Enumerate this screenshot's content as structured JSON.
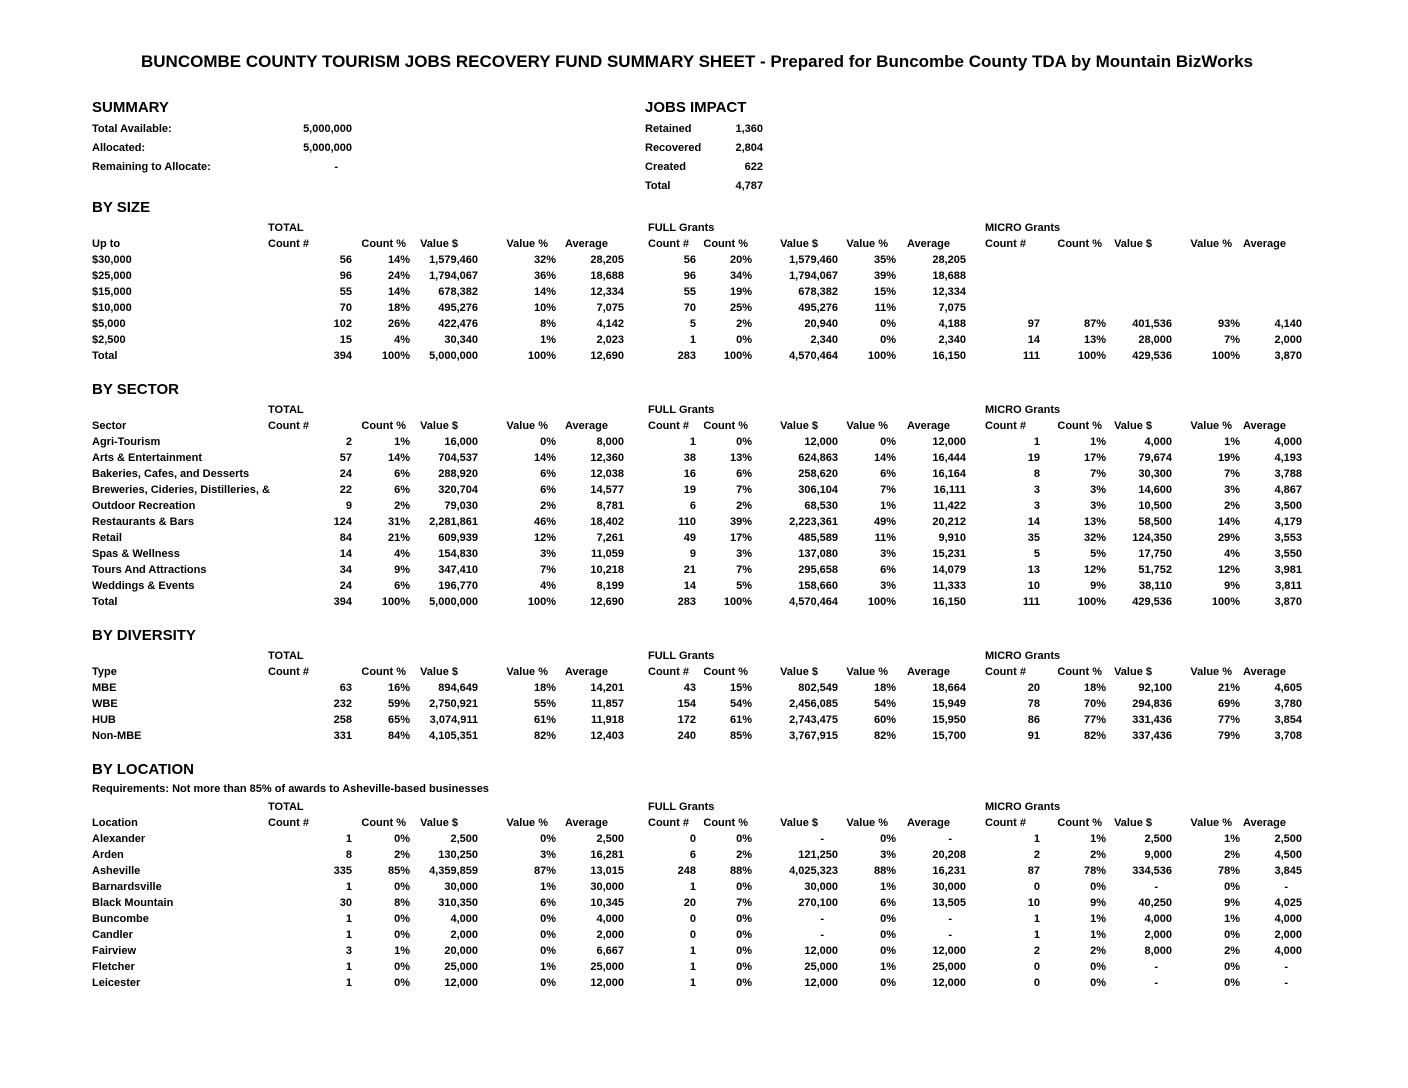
{
  "title": "BUNCOMBE COUNTY TOURISM JOBS RECOVERY FUND SUMMARY SHEET - Prepared for Buncombe County TDA by Mountain BizWorks",
  "summary": {
    "heading": "SUMMARY",
    "rows": [
      {
        "label": "Total Available:",
        "value": "5,000,000"
      },
      {
        "label": "Allocated:",
        "value": "5,000,000"
      },
      {
        "label": "Remaining to Allocate:",
        "value": "-"
      }
    ]
  },
  "jobs_impact": {
    "heading": "JOBS IMPACT",
    "rows": [
      {
        "label": "Retained",
        "value": "1,360"
      },
      {
        "label": "Recovered",
        "value": "2,804"
      },
      {
        "label": "Created",
        "value": "622"
      },
      {
        "label": "Total",
        "value": "4,787"
      }
    ]
  },
  "column_groups": [
    "TOTAL",
    "FULL Grants",
    "MICRO Grants"
  ],
  "column_headers": [
    "Count #",
    "Count %",
    "Value $",
    "Value %",
    "Average"
  ],
  "sections": [
    {
      "heading": "BY SIZE",
      "label_header": "Up to",
      "note": "",
      "rows": [
        {
          "label": "$30,000",
          "total": [
            "56",
            "14%",
            "1,579,460",
            "32%",
            "28,205"
          ],
          "full": [
            "56",
            "20%",
            "1,579,460",
            "35%",
            "28,205"
          ],
          "micro": [
            "",
            "",
            "",
            "",
            ""
          ]
        },
        {
          "label": "$25,000",
          "total": [
            "96",
            "24%",
            "1,794,067",
            "36%",
            "18,688"
          ],
          "full": [
            "96",
            "34%",
            "1,794,067",
            "39%",
            "18,688"
          ],
          "micro": [
            "",
            "",
            "",
            "",
            ""
          ]
        },
        {
          "label": "$15,000",
          "total": [
            "55",
            "14%",
            "678,382",
            "14%",
            "12,334"
          ],
          "full": [
            "55",
            "19%",
            "678,382",
            "15%",
            "12,334"
          ],
          "micro": [
            "",
            "",
            "",
            "",
            ""
          ]
        },
        {
          "label": "$10,000",
          "total": [
            "70",
            "18%",
            "495,276",
            "10%",
            "7,075"
          ],
          "full": [
            "70",
            "25%",
            "495,276",
            "11%",
            "7,075"
          ],
          "micro": [
            "",
            "",
            "",
            "",
            ""
          ]
        },
        {
          "label": "$5,000",
          "total": [
            "102",
            "26%",
            "422,476",
            "8%",
            "4,142"
          ],
          "full": [
            "5",
            "2%",
            "20,940",
            "0%",
            "4,188"
          ],
          "micro": [
            "97",
            "87%",
            "401,536",
            "93%",
            "4,140"
          ]
        },
        {
          "label": "$2,500",
          "total": [
            "15",
            "4%",
            "30,340",
            "1%",
            "2,023"
          ],
          "full": [
            "1",
            "0%",
            "2,340",
            "0%",
            "2,340"
          ],
          "micro": [
            "14",
            "13%",
            "28,000",
            "7%",
            "2,000"
          ]
        },
        {
          "label": "Total",
          "total": [
            "394",
            "100%",
            "5,000,000",
            "100%",
            "12,690"
          ],
          "full": [
            "283",
            "100%",
            "4,570,464",
            "100%",
            "16,150"
          ],
          "micro": [
            "111",
            "100%",
            "429,536",
            "100%",
            "3,870"
          ]
        }
      ]
    },
    {
      "heading": "BY SECTOR",
      "label_header": "Sector",
      "note": "",
      "rows": [
        {
          "label": "Agri-Tourism",
          "total": [
            "2",
            "1%",
            "16,000",
            "0%",
            "8,000"
          ],
          "full": [
            "1",
            "0%",
            "12,000",
            "0%",
            "12,000"
          ],
          "micro": [
            "1",
            "1%",
            "4,000",
            "1%",
            "4,000"
          ]
        },
        {
          "label": "Arts & Entertainment",
          "total": [
            "57",
            "14%",
            "704,537",
            "14%",
            "12,360"
          ],
          "full": [
            "38",
            "13%",
            "624,863",
            "14%",
            "16,444"
          ],
          "micro": [
            "19",
            "17%",
            "79,674",
            "19%",
            "4,193"
          ]
        },
        {
          "label": "Bakeries, Cafes, and Desserts",
          "total": [
            "24",
            "6%",
            "288,920",
            "6%",
            "12,038"
          ],
          "full": [
            "16",
            "6%",
            "258,620",
            "6%",
            "16,164"
          ],
          "micro": [
            "8",
            "7%",
            "30,300",
            "7%",
            "3,788"
          ]
        },
        {
          "label": "Breweries, Cideries, Distilleries, &",
          "total": [
            "22",
            "6%",
            "320,704",
            "6%",
            "14,577"
          ],
          "full": [
            "19",
            "7%",
            "306,104",
            "7%",
            "16,111"
          ],
          "micro": [
            "3",
            "3%",
            "14,600",
            "3%",
            "4,867"
          ]
        },
        {
          "label": "Outdoor Recreation",
          "total": [
            "9",
            "2%",
            "79,030",
            "2%",
            "8,781"
          ],
          "full": [
            "6",
            "2%",
            "68,530",
            "1%",
            "11,422"
          ],
          "micro": [
            "3",
            "3%",
            "10,500",
            "2%",
            "3,500"
          ]
        },
        {
          "label": "Restaurants & Bars",
          "total": [
            "124",
            "31%",
            "2,281,861",
            "46%",
            "18,402"
          ],
          "full": [
            "110",
            "39%",
            "2,223,361",
            "49%",
            "20,212"
          ],
          "micro": [
            "14",
            "13%",
            "58,500",
            "14%",
            "4,179"
          ]
        },
        {
          "label": "Retail",
          "total": [
            "84",
            "21%",
            "609,939",
            "12%",
            "7,261"
          ],
          "full": [
            "49",
            "17%",
            "485,589",
            "11%",
            "9,910"
          ],
          "micro": [
            "35",
            "32%",
            "124,350",
            "29%",
            "3,553"
          ]
        },
        {
          "label": "Spas & Wellness",
          "total": [
            "14",
            "4%",
            "154,830",
            "3%",
            "11,059"
          ],
          "full": [
            "9",
            "3%",
            "137,080",
            "3%",
            "15,231"
          ],
          "micro": [
            "5",
            "5%",
            "17,750",
            "4%",
            "3,550"
          ]
        },
        {
          "label": "Tours And Attractions",
          "total": [
            "34",
            "9%",
            "347,410",
            "7%",
            "10,218"
          ],
          "full": [
            "21",
            "7%",
            "295,658",
            "6%",
            "14,079"
          ],
          "micro": [
            "13",
            "12%",
            "51,752",
            "12%",
            "3,981"
          ]
        },
        {
          "label": "Weddings & Events",
          "total": [
            "24",
            "6%",
            "196,770",
            "4%",
            "8,199"
          ],
          "full": [
            "14",
            "5%",
            "158,660",
            "3%",
            "11,333"
          ],
          "micro": [
            "10",
            "9%",
            "38,110",
            "9%",
            "3,811"
          ]
        },
        {
          "label": "Total",
          "total": [
            "394",
            "100%",
            "5,000,000",
            "100%",
            "12,690"
          ],
          "full": [
            "283",
            "100%",
            "4,570,464",
            "100%",
            "16,150"
          ],
          "micro": [
            "111",
            "100%",
            "429,536",
            "100%",
            "3,870"
          ]
        }
      ]
    },
    {
      "heading": "BY DIVERSITY",
      "label_header": "Type",
      "note": "",
      "rows": [
        {
          "label": "MBE",
          "total": [
            "63",
            "16%",
            "894,649",
            "18%",
            "14,201"
          ],
          "full": [
            "43",
            "15%",
            "802,549",
            "18%",
            "18,664"
          ],
          "micro": [
            "20",
            "18%",
            "92,100",
            "21%",
            "4,605"
          ]
        },
        {
          "label": "WBE",
          "total": [
            "232",
            "59%",
            "2,750,921",
            "55%",
            "11,857"
          ],
          "full": [
            "154",
            "54%",
            "2,456,085",
            "54%",
            "15,949"
          ],
          "micro": [
            "78",
            "70%",
            "294,836",
            "69%",
            "3,780"
          ]
        },
        {
          "label": "HUB",
          "total": [
            "258",
            "65%",
            "3,074,911",
            "61%",
            "11,918"
          ],
          "full": [
            "172",
            "61%",
            "2,743,475",
            "60%",
            "15,950"
          ],
          "micro": [
            "86",
            "77%",
            "331,436",
            "77%",
            "3,854"
          ]
        },
        {
          "label": "Non-MBE",
          "total": [
            "331",
            "84%",
            "4,105,351",
            "82%",
            "12,403"
          ],
          "full": [
            "240",
            "85%",
            "3,767,915",
            "82%",
            "15,700"
          ],
          "micro": [
            "91",
            "82%",
            "337,436",
            "79%",
            "3,708"
          ]
        }
      ]
    },
    {
      "heading": "BY LOCATION",
      "label_header": "Location",
      "note": "Requirements: Not more than 85% of awards to Asheville-based businesses",
      "rows": [
        {
          "label": "Alexander",
          "total": [
            "1",
            "0%",
            "2,500",
            "0%",
            "2,500"
          ],
          "full": [
            "0",
            "0%",
            "-",
            "0%",
            "-"
          ],
          "micro": [
            "1",
            "1%",
            "2,500",
            "1%",
            "2,500"
          ]
        },
        {
          "label": "Arden",
          "total": [
            "8",
            "2%",
            "130,250",
            "3%",
            "16,281"
          ],
          "full": [
            "6",
            "2%",
            "121,250",
            "3%",
            "20,208"
          ],
          "micro": [
            "2",
            "2%",
            "9,000",
            "2%",
            "4,500"
          ]
        },
        {
          "label": "Asheville",
          "total": [
            "335",
            "85%",
            "4,359,859",
            "87%",
            "13,015"
          ],
          "full": [
            "248",
            "88%",
            "4,025,323",
            "88%",
            "16,231"
          ],
          "micro": [
            "87",
            "78%",
            "334,536",
            "78%",
            "3,845"
          ]
        },
        {
          "label": "Barnardsville",
          "total": [
            "1",
            "0%",
            "30,000",
            "1%",
            "30,000"
          ],
          "full": [
            "1",
            "0%",
            "30,000",
            "1%",
            "30,000"
          ],
          "micro": [
            "0",
            "0%",
            "-",
            "0%",
            "-"
          ]
        },
        {
          "label": "Black Mountain",
          "total": [
            "30",
            "8%",
            "310,350",
            "6%",
            "10,345"
          ],
          "full": [
            "20",
            "7%",
            "270,100",
            "6%",
            "13,505"
          ],
          "micro": [
            "10",
            "9%",
            "40,250",
            "9%",
            "4,025"
          ]
        },
        {
          "label": "Buncombe",
          "total": [
            "1",
            "0%",
            "4,000",
            "0%",
            "4,000"
          ],
          "full": [
            "0",
            "0%",
            "-",
            "0%",
            "-"
          ],
          "micro": [
            "1",
            "1%",
            "4,000",
            "1%",
            "4,000"
          ]
        },
        {
          "label": "Candler",
          "total": [
            "1",
            "0%",
            "2,000",
            "0%",
            "2,000"
          ],
          "full": [
            "0",
            "0%",
            "-",
            "0%",
            "-"
          ],
          "micro": [
            "1",
            "1%",
            "2,000",
            "0%",
            "2,000"
          ]
        },
        {
          "label": "Fairview",
          "total": [
            "3",
            "1%",
            "20,000",
            "0%",
            "6,667"
          ],
          "full": [
            "1",
            "0%",
            "12,000",
            "0%",
            "12,000"
          ],
          "micro": [
            "2",
            "2%",
            "8,000",
            "2%",
            "4,000"
          ]
        },
        {
          "label": "Fletcher",
          "total": [
            "1",
            "0%",
            "25,000",
            "1%",
            "25,000"
          ],
          "full": [
            "1",
            "0%",
            "25,000",
            "1%",
            "25,000"
          ],
          "micro": [
            "0",
            "0%",
            "-",
            "0%",
            "-"
          ]
        },
        {
          "label": "Leicester",
          "total": [
            "1",
            "0%",
            "12,000",
            "0%",
            "12,000"
          ],
          "full": [
            "1",
            "0%",
            "12,000",
            "0%",
            "12,000"
          ],
          "micro": [
            "0",
            "0%",
            "-",
            "0%",
            "-"
          ]
        }
      ]
    }
  ]
}
